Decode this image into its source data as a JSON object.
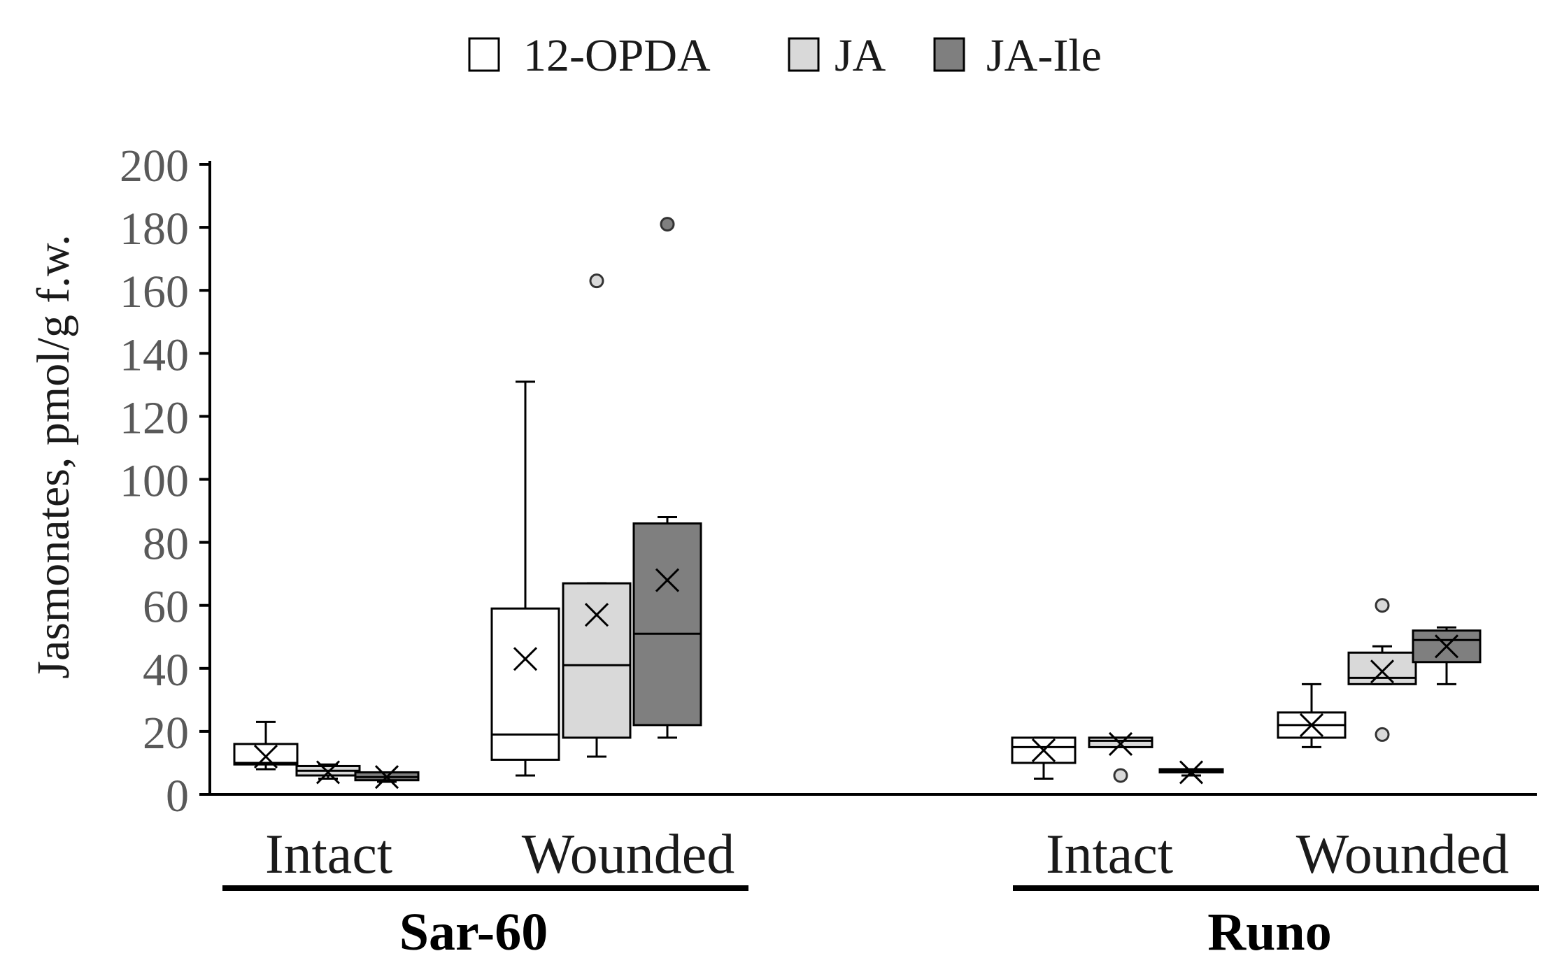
{
  "chart_data": {
    "type": "box",
    "legend": {
      "placement": "top-center",
      "entries": [
        {
          "name": "12-OPDA",
          "color": "#ffffff"
        },
        {
          "name": "JA",
          "color": "#d9d9d9"
        },
        {
          "name": "JA-Ile",
          "color": "#7f7f7f"
        }
      ]
    },
    "ylabel": "Jasmonates, pmol/g f.w.",
    "ylim": [
      0,
      200
    ],
    "yticks": [
      "0",
      "20",
      "40",
      "60",
      "80",
      "100",
      "120",
      "140",
      "160",
      "180",
      "200"
    ],
    "grid": false,
    "groups": [
      {
        "name": "Sar-60",
        "conditions": [
          {
            "name": "Intact",
            "boxes": [
              {
                "series": "12-OPDA",
                "min": 8,
                "q1": 9.5,
                "median": 10,
                "q3": 16,
                "max": 23,
                "mean": 12,
                "outliers": []
              },
              {
                "series": "JA",
                "min": 5,
                "q1": 6,
                "median": 7.5,
                "q3": 9,
                "max": 9.5,
                "mean": 7,
                "outliers": []
              },
              {
                "series": "JA-Ile",
                "min": 4,
                "q1": 4.5,
                "median": 5.5,
                "q3": 7,
                "max": 7,
                "mean": 5.5,
                "outliers": []
              }
            ]
          },
          {
            "name": "Wounded",
            "boxes": [
              {
                "series": "12-OPDA",
                "min": 6,
                "q1": 11,
                "median": 19,
                "q3": 59,
                "max": 131,
                "mean": 43,
                "outliers": []
              },
              {
                "series": "JA",
                "min": 12,
                "q1": 18,
                "median": 41,
                "q3": 67,
                "max": 67,
                "mean": 57,
                "outliers": [
                  163
                ]
              },
              {
                "series": "JA-Ile",
                "min": 18,
                "q1": 22,
                "median": 51,
                "q3": 86,
                "max": 88,
                "mean": 68,
                "outliers": [
                  181
                ]
              }
            ]
          }
        ]
      },
      {
        "name": "Runo",
        "conditions": [
          {
            "name": "Intact",
            "boxes": [
              {
                "series": "12-OPDA",
                "min": 5,
                "q1": 10,
                "median": 15,
                "q3": 18,
                "max": 18,
                "mean": 14,
                "outliers": []
              },
              {
                "series": "JA",
                "min": 15,
                "q1": 15,
                "median": 17,
                "q3": 18,
                "max": 18,
                "mean": 16,
                "outliers": [
                  6
                ]
              },
              {
                "series": "JA-Ile",
                "min": 6,
                "q1": 7,
                "median": 7.5,
                "q3": 8,
                "max": 8,
                "mean": 7,
                "outliers": []
              }
            ]
          },
          {
            "name": "Wounded",
            "boxes": [
              {
                "series": "12-OPDA",
                "min": 15,
                "q1": 18,
                "median": 22,
                "q3": 26,
                "max": 35,
                "mean": 22,
                "outliers": []
              },
              {
                "series": "JA",
                "min": 35,
                "q1": 35,
                "median": 37,
                "q3": 45,
                "max": 47,
                "mean": 39,
                "outliers": [
                  60,
                  19
                ]
              },
              {
                "series": "JA-Ile",
                "min": 35,
                "q1": 42,
                "median": 49,
                "q3": 52,
                "max": 53,
                "mean": 47,
                "outliers": []
              }
            ]
          }
        ]
      }
    ]
  }
}
